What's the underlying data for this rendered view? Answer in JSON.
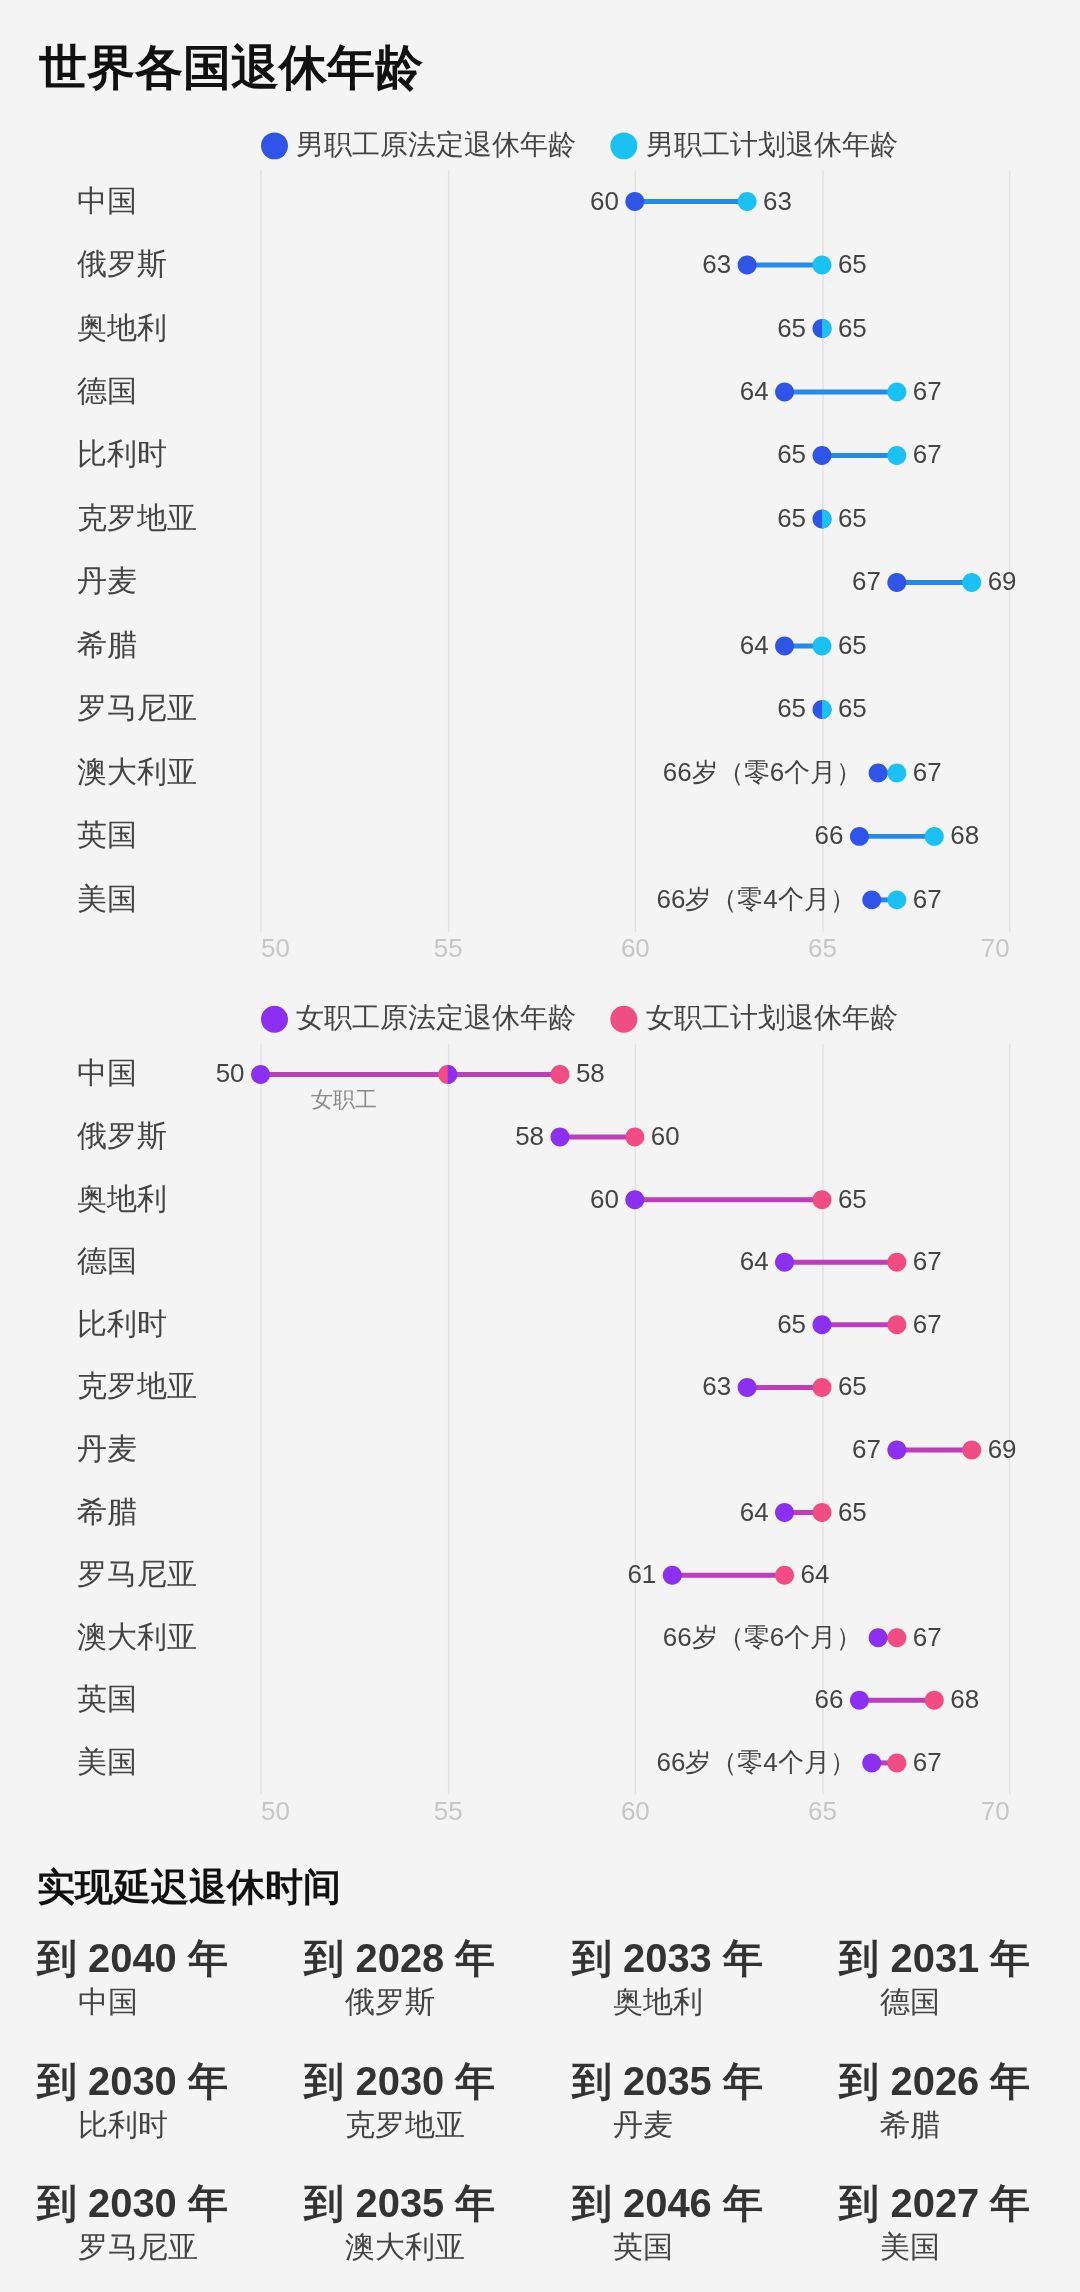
{
  "chart_data": [
    {
      "type": "scatter",
      "orientation": "horizontal",
      "title": "世界各国退休年龄",
      "categories": [
        "中国",
        "俄罗斯",
        "奥地利",
        "德国",
        "比利时",
        "克罗地亚",
        "丹麦",
        "希腊",
        "罗马尼亚",
        "澳大利亚",
        "英国",
        "美国"
      ],
      "series": [
        {
          "name": "男职工原法定退休年龄",
          "color": "#2f55e8",
          "values": [
            60,
            63,
            65,
            64,
            65,
            65,
            67,
            64,
            65,
            66.5,
            66,
            66.33
          ],
          "value_labels": [
            "60",
            "63",
            "65",
            "64",
            "65",
            "65",
            "67",
            "64",
            "65",
            "66岁（零6个月）",
            "66",
            "66岁（零4个月）"
          ]
        },
        {
          "name": "男职工计划退休年龄",
          "color": "#19c2f2",
          "values": [
            63,
            65,
            65,
            67,
            67,
            65,
            69,
            65,
            65,
            67,
            68,
            67
          ],
          "value_labels": [
            "63",
            "65",
            "65",
            "67",
            "67",
            "65",
            "69",
            "65",
            "65",
            "67",
            "68",
            "67"
          ]
        }
      ],
      "xlim": [
        50,
        70
      ],
      "xticks": [
        50,
        55,
        60,
        65,
        70
      ],
      "grid": "x",
      "legend": "top",
      "marker": "circle"
    },
    {
      "type": "scatter",
      "orientation": "horizontal",
      "categories": [
        "中国",
        "俄罗斯",
        "奥地利",
        "德国",
        "比利时",
        "克罗地亚",
        "丹麦",
        "希腊",
        "罗马尼亚",
        "澳大利亚",
        "英国",
        "美国"
      ],
      "series": [
        {
          "name": "女职工原法定退休年龄",
          "color": "#8b2ff0",
          "values": [
            50,
            58,
            60,
            64,
            65,
            63,
            67,
            64,
            61,
            66.5,
            66,
            66.33
          ],
          "value_labels": [
            "50",
            "58",
            "60",
            "64",
            "65",
            "63",
            "67",
            "64",
            "61",
            "66岁（零6个月）",
            "66",
            "66岁（零4个月）"
          ]
        },
        {
          "name": "女职工计划退休年龄",
          "color": "#f24c85",
          "values": [
            58,
            60,
            65,
            67,
            67,
            65,
            69,
            65,
            64,
            67,
            68,
            67
          ],
          "value_labels": [
            "58",
            "60",
            "65",
            "67",
            "67",
            "65",
            "69",
            "65",
            "64",
            "67",
            "68",
            "67"
          ]
        },
        {
          "color": "#f24c85",
          "values": [
            55,
            null,
            null,
            null,
            null,
            null,
            null,
            null,
            null,
            null,
            null,
            null
          ]
        },
        {
          "color": "#8b2ff0",
          "values": [
            55,
            null,
            null,
            null,
            null,
            null,
            null,
            null,
            null,
            null,
            null,
            null
          ]
        }
      ],
      "annotations": [
        "女职工"
      ],
      "xlim": [
        50,
        70
      ],
      "xticks": [
        50,
        55,
        60,
        65,
        70
      ],
      "grid": "x",
      "legend": "top",
      "marker": "circle"
    },
    {
      "type": "other",
      "title": "实现延迟退休时间",
      "annotations": [
        "到 2040 年",
        "中国",
        "到 2028 年",
        "俄罗斯",
        "到 2033 年",
        "奥地利",
        "到 2031 年",
        "德国",
        "到 2030 年",
        "比利时",
        "到 2030 年",
        "克罗地亚",
        "到 2035 年",
        "丹麦",
        "到 2026 年",
        "希腊",
        "到 2030 年",
        "罗马尼亚",
        "到 2035 年",
        "澳大利亚",
        "到 2046 年",
        "英国",
        "到 2027 年",
        "美国"
      ]
    }
  ]
}
